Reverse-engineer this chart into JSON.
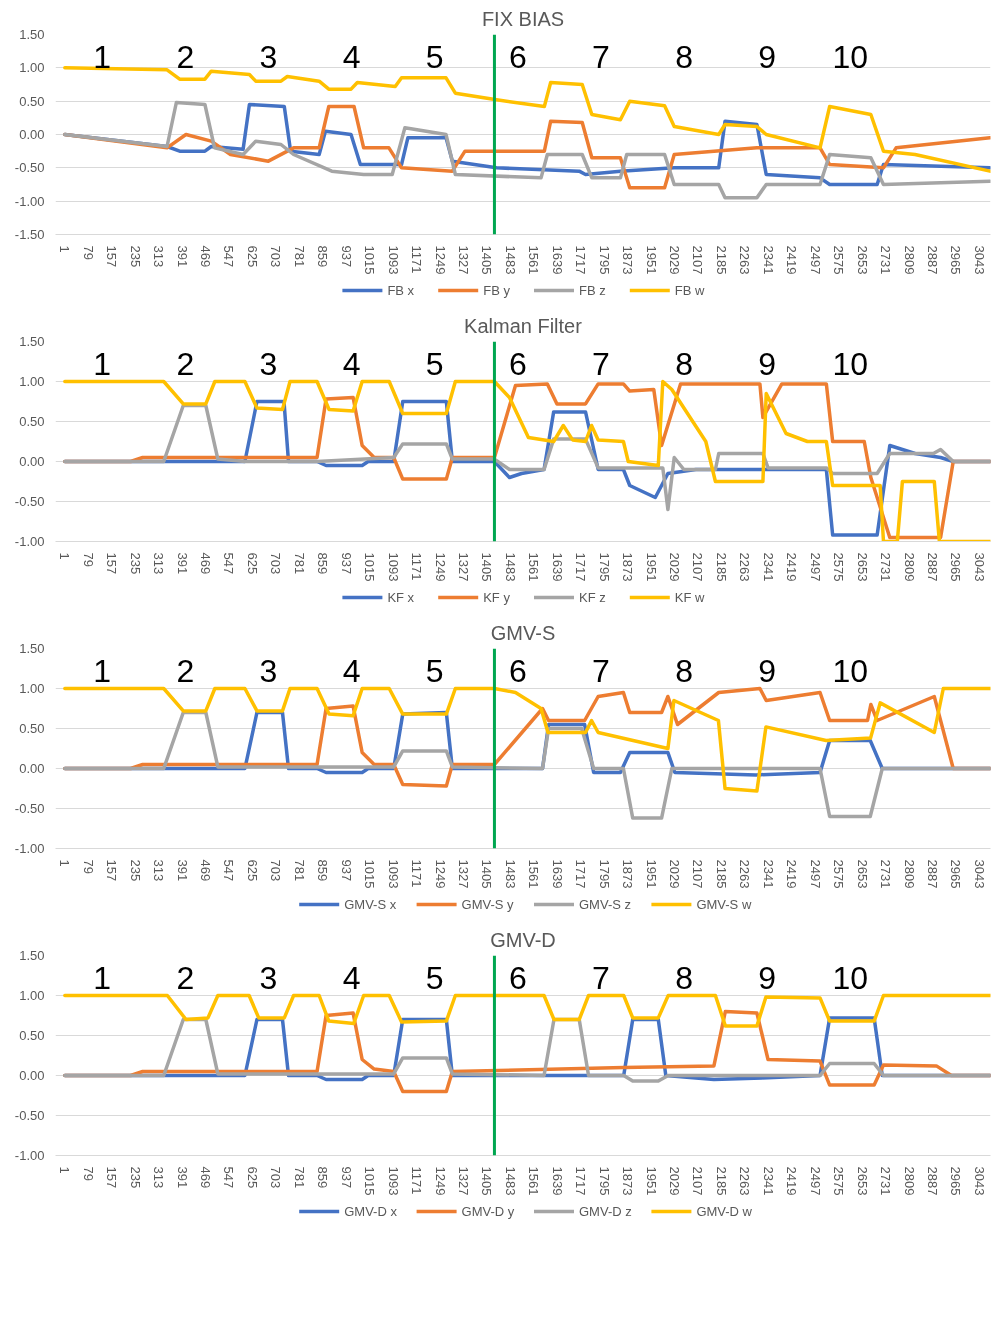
{
  "chart_data": [
    {
      "type": "line",
      "title": "FIX BIAS",
      "xlim": [
        -30,
        3080
      ],
      "xticks": [
        1,
        79,
        157,
        235,
        313,
        391,
        469,
        547,
        625,
        703,
        781,
        859,
        937,
        1015,
        1093,
        1171,
        1249,
        1327,
        1405,
        1483,
        1561,
        1639,
        1717,
        1795,
        1873,
        1951,
        2029,
        2107,
        2185,
        2263,
        2341,
        2419,
        2497,
        2575,
        2653,
        2731,
        2809,
        2887,
        2965,
        3043
      ],
      "ylim": [
        -1.5,
        1.5
      ],
      "yticks": [
        {
          "value": -1.5,
          "label": "-1.50"
        },
        {
          "value": -1.0,
          "label": "-1.00"
        },
        {
          "value": -0.5,
          "label": "-0.50"
        },
        {
          "value": 0,
          "label": "0.00"
        },
        {
          "value": 0.5,
          "label": "0.50"
        },
        {
          "value": 1.0,
          "label": "1.00"
        },
        {
          "value": 1.5,
          "label": "1.50"
        }
      ],
      "grid": "y",
      "legend": "bottom",
      "ref_lines": [
        {
          "axis": "x",
          "value": 1430,
          "color": "#00a650"
        }
      ],
      "annotations": [
        "1",
        "2",
        "3",
        "4",
        "5",
        "6",
        "7",
        "8",
        "9",
        "10"
      ],
      "series": [
        {
          "name": "FB x",
          "color": "#4472c4",
          "x": [
            1,
            341,
            383,
            467,
            488,
            594,
            615,
            731,
            752,
            847,
            868,
            953,
            984,
            1121,
            1142,
            1269,
            1290,
            1437,
            1712,
            1733,
            1849,
            2028,
            2176,
            2197,
            2303,
            2334,
            2513,
            2545,
            2703,
            2724,
            3078
          ],
          "values": [
            0,
            -0.18,
            -0.25,
            -0.25,
            -0.18,
            -0.22,
            0.45,
            0.42,
            -0.25,
            -0.3,
            0.05,
            0.0,
            -0.45,
            -0.45,
            -0.05,
            -0.05,
            -0.4,
            -0.5,
            -0.55,
            -0.6,
            -0.55,
            -0.5,
            -0.5,
            0.2,
            0.15,
            -0.6,
            -0.65,
            -0.75,
            -0.75,
            -0.45,
            -0.5
          ]
        },
        {
          "name": "FB y",
          "color": "#ed7d31",
          "x": [
            1,
            341,
            404,
            488,
            552,
            678,
            762,
            847,
            879,
            963,
            995,
            1079,
            1121,
            1290,
            1332,
            1596,
            1617,
            1722,
            1754,
            1849,
            1880,
            1996,
            2028,
            2303,
            2513,
            2545,
            2724,
            2766,
            3078
          ],
          "values": [
            0,
            -0.2,
            0.0,
            -0.1,
            -0.3,
            -0.4,
            -0.2,
            -0.2,
            0.42,
            0.42,
            -0.2,
            -0.2,
            -0.5,
            -0.55,
            -0.25,
            -0.25,
            0.2,
            0.18,
            -0.35,
            -0.35,
            -0.8,
            -0.8,
            -0.3,
            -0.2,
            -0.2,
            -0.45,
            -0.5,
            -0.2,
            -0.05
          ]
        },
        {
          "name": "FB z",
          "color": "#a5a5a5",
          "x": [
            1,
            341,
            372,
            467,
            499,
            594,
            636,
            720,
            762,
            889,
            995,
            1090,
            1132,
            1269,
            1300,
            1585,
            1606,
            1722,
            1754,
            1849,
            1870,
            1996,
            2028,
            2176,
            2197,
            2303,
            2334,
            2513,
            2545,
            2682,
            2724,
            3078
          ],
          "values": [
            0,
            -0.18,
            0.48,
            0.45,
            -0.2,
            -0.3,
            -0.1,
            -0.15,
            -0.3,
            -0.55,
            -0.6,
            -0.6,
            0.1,
            0.0,
            -0.6,
            -0.65,
            -0.3,
            -0.3,
            -0.65,
            -0.65,
            -0.3,
            -0.3,
            -0.75,
            -0.75,
            -0.95,
            -0.95,
            -0.75,
            -0.75,
            -0.3,
            -0.35,
            -0.75,
            -0.7
          ]
        },
        {
          "name": "FB w",
          "color": "#ffc000",
          "x": [
            1,
            341,
            383,
            467,
            488,
            615,
            636,
            720,
            741,
            847,
            879,
            953,
            974,
            1100,
            1121,
            1269,
            1300,
            1437,
            1596,
            1617,
            1722,
            1754,
            1849,
            1880,
            1996,
            2028,
            2176,
            2197,
            2303,
            2334,
            2513,
            2545,
            2682,
            2724,
            2829,
            3078
          ],
          "values": [
            1,
            0.97,
            0.83,
            0.83,
            0.95,
            0.9,
            0.8,
            0.8,
            0.87,
            0.8,
            0.68,
            0.68,
            0.78,
            0.72,
            0.85,
            0.85,
            0.62,
            0.52,
            0.42,
            0.78,
            0.75,
            0.3,
            0.22,
            0.5,
            0.43,
            0.12,
            0.0,
            0.15,
            0.12,
            0.0,
            -0.2,
            0.42,
            0.3,
            -0.25,
            -0.3,
            -0.55
          ]
        }
      ]
    },
    {
      "type": "line",
      "title": "Kalman Filter",
      "xlim": [
        -30,
        3080
      ],
      "xticks": [
        1,
        79,
        157,
        235,
        313,
        391,
        469,
        547,
        625,
        703,
        781,
        859,
        937,
        1015,
        1093,
        1171,
        1249,
        1327,
        1405,
        1483,
        1561,
        1639,
        1717,
        1795,
        1873,
        1951,
        2029,
        2107,
        2185,
        2263,
        2341,
        2419,
        2497,
        2575,
        2653,
        2731,
        2809,
        2887,
        2965,
        3043
      ],
      "ylim": [
        -1.0,
        1.5
      ],
      "yticks": [
        {
          "value": -1.0,
          "label": "-1.00"
        },
        {
          "value": -0.5,
          "label": "-0.50"
        },
        {
          "value": 0,
          "label": "0.00"
        },
        {
          "value": 0.5,
          "label": "0.50"
        },
        {
          "value": 1.0,
          "label": "1.00"
        },
        {
          "value": 1.5,
          "label": "1.50"
        }
      ],
      "grid": "y",
      "legend": "bottom",
      "ref_lines": [
        {
          "axis": "x",
          "value": 1430,
          "color": "#00a650"
        }
      ],
      "annotations": [
        "1",
        "2",
        "3",
        "4",
        "5",
        "6",
        "7",
        "8",
        "9",
        "10"
      ],
      "series": [
        {
          "name": "KF x",
          "color": "#4472c4",
          "x": [
            1,
            600,
            640,
            730,
            745,
            840,
            870,
            990,
            1010,
            1095,
            1125,
            1270,
            1290,
            1430,
            1480,
            1520,
            1595,
            1627,
            1733,
            1775,
            1859,
            1880,
            1965,
            2007,
            2100,
            2534,
            2555,
            2703,
            2745,
            2829,
            2914,
            2956,
            3080
          ],
          "values": [
            0,
            0,
            0.75,
            0.75,
            0,
            0,
            -0.05,
            -0.05,
            0,
            0,
            0.75,
            0.75,
            0,
            0,
            -0.2,
            -0.15,
            -0.1,
            0.62,
            0.62,
            -0.1,
            -0.1,
            -0.3,
            -0.45,
            -0.15,
            -0.1,
            -0.1,
            -0.92,
            -0.92,
            0.2,
            0.1,
            0.05,
            0,
            0
          ]
        },
        {
          "name": "KF y",
          "color": "#ed7d31",
          "x": [
            1,
            220,
            260,
            840,
            870,
            960,
            990,
            1030,
            1095,
            1125,
            1270,
            1290,
            1430,
            1500,
            1606,
            1638,
            1733,
            1775,
            1859,
            1880,
            1960,
            1986,
            2049,
            2313,
            2323,
            2386,
            2534,
            2555,
            2660,
            2682,
            2745,
            2914,
            2956,
            3080
          ],
          "values": [
            0,
            0,
            0.05,
            0.05,
            0.78,
            0.8,
            0.2,
            0.05,
            0.05,
            -0.22,
            -0.22,
            0.05,
            0.05,
            0.95,
            0.97,
            0.72,
            0.72,
            0.97,
            0.97,
            0.88,
            0.9,
            0.2,
            0.97,
            0.97,
            0.55,
            0.97,
            0.97,
            0.25,
            0.25,
            -0.2,
            -0.95,
            -0.95,
            0,
            0
          ]
        },
        {
          "name": "KF z",
          "color": "#a5a5a5",
          "x": [
            1,
            330,
            395,
            470,
            510,
            600,
            840,
            1095,
            1125,
            1270,
            1290,
            1430,
            1480,
            1595,
            1627,
            1733,
            1775,
            1990,
            2007,
            2028,
            2060,
            2165,
            2176,
            2323,
            2340,
            2534,
            2555,
            2703,
            2745,
            2890,
            2914,
            2956,
            3080
          ],
          "values": [
            0,
            0,
            0.7,
            0.7,
            0.03,
            0,
            0,
            0.05,
            0.22,
            0.22,
            0.03,
            0.03,
            -0.1,
            -0.1,
            0.28,
            0.28,
            -0.08,
            -0.08,
            -0.6,
            0.05,
            -0.1,
            -0.1,
            0.1,
            0.1,
            -0.08,
            -0.08,
            -0.15,
            -0.15,
            0.1,
            0.1,
            0.15,
            0,
            0
          ]
        },
        {
          "name": "KF w",
          "color": "#ffc000",
          "x": [
            1,
            330,
            395,
            470,
            500,
            600,
            640,
            725,
            750,
            840,
            880,
            960,
            990,
            1080,
            1125,
            1270,
            1300,
            1430,
            1480,
            1543,
            1627,
            1659,
            1690,
            1733,
            1753,
            1775,
            1859,
            1875,
            1975,
            1990,
            2020,
            2133,
            2165,
            2323,
            2334,
            2400,
            2471,
            2534,
            2555,
            2713,
            2724,
            2770,
            2787,
            2893,
            2910,
            3080
          ],
          "values": [
            1,
            1,
            0.72,
            0.72,
            1,
            1,
            0.67,
            0.65,
            1,
            1,
            0.65,
            0.63,
            1,
            1,
            0.6,
            0.6,
            1,
            1,
            0.8,
            0.3,
            0.25,
            0.45,
            0.27,
            0.25,
            0.45,
            0.27,
            0.25,
            0.0,
            -0.05,
            1.0,
            0.9,
            0.25,
            -0.25,
            -0.25,
            0.85,
            0.35,
            0.25,
            0.25,
            -0.3,
            -0.3,
            -1.0,
            -1.0,
            -0.25,
            -0.25,
            -1.0,
            -1.0
          ]
        }
      ]
    },
    {
      "type": "line",
      "title": "GMV-S",
      "xlim": [
        -30,
        3080
      ],
      "xticks": [
        1,
        79,
        157,
        235,
        313,
        391,
        469,
        547,
        625,
        703,
        781,
        859,
        937,
        1015,
        1093,
        1171,
        1249,
        1327,
        1405,
        1483,
        1561,
        1639,
        1717,
        1795,
        1873,
        1951,
        2029,
        2107,
        2185,
        2263,
        2341,
        2419,
        2497,
        2575,
        2653,
        2731,
        2809,
        2887,
        2965,
        3043
      ],
      "ylim": [
        -1.0,
        1.5
      ],
      "yticks": [
        {
          "value": -1.0,
          "label": "-1.00"
        },
        {
          "value": -0.5,
          "label": "-0.50"
        },
        {
          "value": 0,
          "label": "0.00"
        },
        {
          "value": 0.5,
          "label": "0.50"
        },
        {
          "value": 1.0,
          "label": "1.00"
        },
        {
          "value": 1.5,
          "label": "1.50"
        }
      ],
      "grid": "y",
      "legend": "bottom",
      "ref_lines": [
        {
          "axis": "x",
          "value": 1430,
          "color": "#00a650"
        }
      ],
      "annotations": [
        "1",
        "2",
        "3",
        "4",
        "5",
        "6",
        "7",
        "8",
        "9",
        "10"
      ],
      "series": [
        {
          "name": "GMV-S x",
          "color": "#4472c4",
          "x": [
            1,
            600,
            640,
            725,
            745,
            840,
            870,
            990,
            1010,
            1095,
            1125,
            1270,
            1290,
            1590,
            1610,
            1730,
            1760,
            1849,
            1880,
            2007,
            2030,
            2300,
            2513,
            2545,
            2680,
            2720,
            3080
          ],
          "values": [
            0,
            0,
            0.7,
            0.7,
            0,
            0,
            -0.05,
            -0.05,
            0,
            0,
            0.68,
            0.7,
            0,
            0,
            0.55,
            0.55,
            -0.05,
            -0.05,
            0.2,
            0.2,
            -0.05,
            -0.08,
            -0.05,
            0.35,
            0.35,
            0,
            0
          ]
        },
        {
          "name": "GMV-S y",
          "color": "#ed7d31",
          "x": [
            1,
            220,
            260,
            840,
            870,
            960,
            990,
            1030,
            1095,
            1125,
            1270,
            1290,
            1430,
            1590,
            1610,
            1730,
            1775,
            1859,
            1880,
            1986,
            2007,
            2039,
            2176,
            2313,
            2334,
            2513,
            2545,
            2671,
            2682,
            2703,
            2893,
            2956,
            3080
          ],
          "values": [
            0,
            0,
            0.05,
            0.05,
            0.75,
            0.78,
            0.2,
            0.05,
            0.05,
            -0.2,
            -0.22,
            0.05,
            0.05,
            0.75,
            0.6,
            0.6,
            0.9,
            0.95,
            0.7,
            0.7,
            0.9,
            0.55,
            0.95,
            1.0,
            0.85,
            0.95,
            0.6,
            0.6,
            0.8,
            0.6,
            0.9,
            0,
            0
          ]
        },
        {
          "name": "GMV-S z",
          "color": "#a5a5a5",
          "x": [
            1,
            330,
            395,
            470,
            510,
            1095,
            1125,
            1270,
            1290,
            1590,
            1610,
            1720,
            1760,
            1859,
            1890,
            1986,
            2020,
            2513,
            2545,
            2680,
            2720,
            3080
          ],
          "values": [
            0,
            0,
            0.7,
            0.7,
            0.02,
            0.02,
            0.22,
            0.22,
            0.02,
            0,
            0.5,
            0.5,
            0,
            0,
            -0.62,
            -0.62,
            0,
            0,
            -0.6,
            -0.6,
            0,
            0
          ]
        },
        {
          "name": "GMV-S w",
          "color": "#ffc000",
          "x": [
            1,
            330,
            395,
            470,
            500,
            600,
            640,
            725,
            750,
            840,
            880,
            960,
            990,
            1080,
            1125,
            1270,
            1300,
            1430,
            1500,
            1585,
            1608,
            1733,
            1753,
            1775,
            2007,
            2027,
            2175,
            2197,
            2303,
            2333,
            2533,
            2681,
            2713,
            2893,
            2923,
            3080
          ],
          "values": [
            1,
            1,
            0.72,
            0.72,
            1,
            1,
            0.72,
            0.72,
            1,
            1,
            0.68,
            0.66,
            1,
            1,
            0.68,
            0.68,
            1,
            1,
            0.95,
            0.75,
            0.45,
            0.45,
            0.6,
            0.45,
            0.25,
            0.85,
            0.6,
            -0.25,
            -0.28,
            0.52,
            0.35,
            0.38,
            0.82,
            0.45,
            1,
            1
          ]
        }
      ]
    },
    {
      "type": "line",
      "title": "GMV-D",
      "xlim": [
        -30,
        3080
      ],
      "xticks": [
        1,
        79,
        157,
        235,
        313,
        391,
        469,
        547,
        625,
        703,
        781,
        859,
        937,
        1015,
        1093,
        1171,
        1249,
        1327,
        1405,
        1483,
        1561,
        1639,
        1717,
        1795,
        1873,
        1951,
        2029,
        2107,
        2185,
        2263,
        2341,
        2419,
        2497,
        2575,
        2653,
        2731,
        2809,
        2887,
        2965,
        3043
      ],
      "ylim": [
        -1.0,
        1.5
      ],
      "yticks": [
        {
          "value": -1.0,
          "label": "-1.00"
        },
        {
          "value": -0.5,
          "label": "-0.50"
        },
        {
          "value": 0,
          "label": "0.00"
        },
        {
          "value": 0.5,
          "label": "0.50"
        },
        {
          "value": 1.0,
          "label": "1.00"
        },
        {
          "value": 1.5,
          "label": "1.50"
        }
      ],
      "grid": "y",
      "legend": "bottom",
      "ref_lines": [
        {
          "axis": "x",
          "value": 1430,
          "color": "#00a650"
        }
      ],
      "annotations": [
        "1",
        "2",
        "3",
        "4",
        "5",
        "6",
        "7",
        "8",
        "9",
        "10"
      ],
      "series": [
        {
          "name": "GMV-D x",
          "color": "#4472c4",
          "x": [
            1,
            600,
            640,
            725,
            745,
            840,
            870,
            990,
            1010,
            1095,
            1125,
            1270,
            1290,
            1860,
            1890,
            1975,
            2000,
            2160,
            2320,
            2513,
            2545,
            2693,
            2720,
            3080
          ],
          "values": [
            0,
            0,
            0.7,
            0.7,
            0,
            0,
            -0.05,
            -0.05,
            0,
            0,
            0.7,
            0.7,
            0,
            0,
            0.7,
            0.7,
            0,
            -0.05,
            -0.03,
            0,
            0.72,
            0.72,
            0,
            0
          ]
        },
        {
          "name": "GMV-D y",
          "color": "#ed7d31",
          "x": [
            1,
            220,
            260,
            840,
            870,
            960,
            990,
            1030,
            1095,
            1125,
            1270,
            1290,
            1860,
            2160,
            2198,
            2303,
            2340,
            2513,
            2545,
            2693,
            2724,
            2900,
            2950,
            3080
          ],
          "values": [
            0,
            0,
            0.05,
            0.05,
            0.75,
            0.78,
            0.2,
            0.08,
            0.05,
            -0.2,
            -0.2,
            0.05,
            0.1,
            0.12,
            0.8,
            0.78,
            0.2,
            0.18,
            -0.12,
            -0.12,
            0.13,
            0.12,
            0,
            0
          ]
        },
        {
          "name": "GMV-D z",
          "color": "#a5a5a5",
          "x": [
            1,
            330,
            395,
            470,
            510,
            1095,
            1125,
            1270,
            1290,
            1595,
            1628,
            1712,
            1743,
            1860,
            1890,
            1975,
            2008,
            2513,
            2545,
            2693,
            2724,
            3080
          ],
          "values": [
            0,
            0,
            0.7,
            0.7,
            0.02,
            0.02,
            0.22,
            0.22,
            0.02,
            0,
            0.7,
            0.7,
            0,
            0,
            -0.07,
            -0.07,
            0,
            0,
            0.15,
            0.15,
            0,
            0
          ]
        },
        {
          "name": "GMV-D w",
          "color": "#ffc000",
          "x": [
            1,
            342,
            404,
            477,
            510,
            614,
            646,
            731,
            762,
            847,
            879,
            962,
            995,
            1080,
            1121,
            1270,
            1300,
            1595,
            1628,
            1712,
            1743,
            1860,
            1890,
            1975,
            2008,
            2165,
            2198,
            2303,
            2333,
            2513,
            2545,
            2693,
            2724,
            3080
          ],
          "values": [
            1,
            1,
            0.7,
            0.72,
            1,
            1,
            0.72,
            0.72,
            1,
            1,
            0.68,
            0.65,
            1,
            1,
            0.67,
            0.68,
            1,
            1,
            0.7,
            0.7,
            1,
            1,
            0.72,
            0.72,
            1,
            1,
            0.62,
            0.62,
            0.98,
            0.97,
            0.68,
            0.68,
            1,
            1
          ]
        }
      ]
    }
  ]
}
